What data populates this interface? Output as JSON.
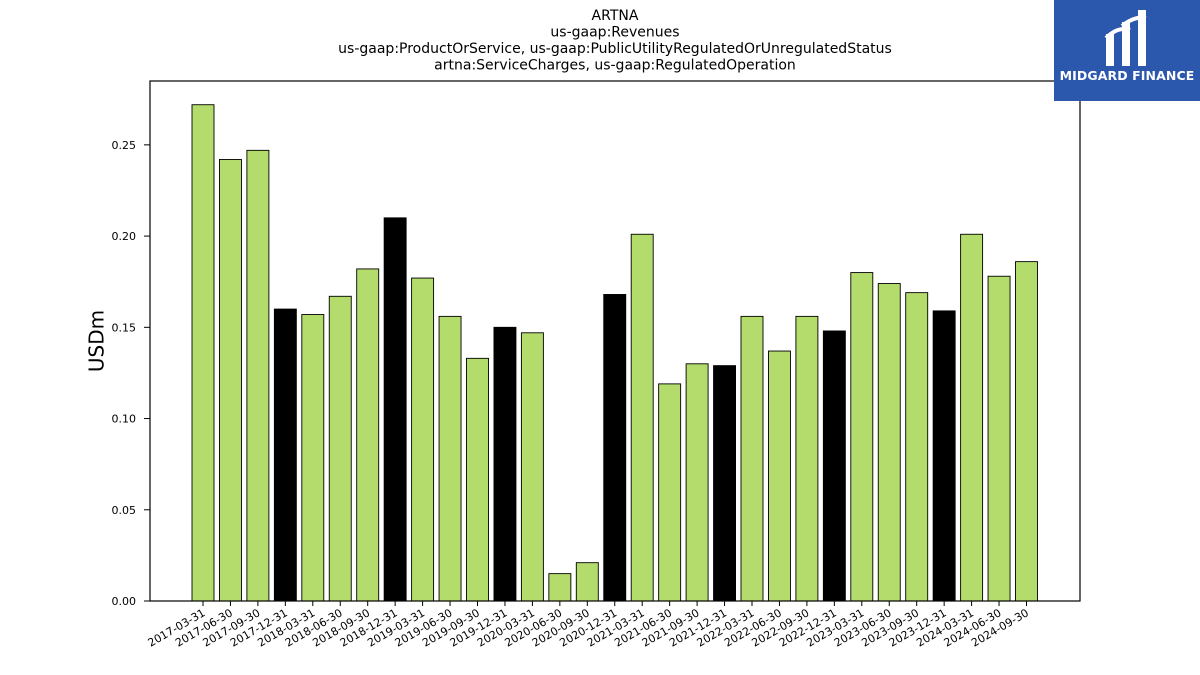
{
  "logo": {
    "text": "MIDGARD FINANCE"
  },
  "chart_data": {
    "type": "bar",
    "title_lines": [
      "ARTNA",
      "us-gaap:Revenues",
      "us-gaap:ProductOrService, us-gaap:PublicUtilityRegulatedOrUnregulatedStatus",
      "artna:ServiceCharges, us-gaap:RegulatedOperation"
    ],
    "xlabel": "",
    "ylabel": "USDm",
    "ylim": [
      0,
      0.285
    ],
    "yticks": [
      0.0,
      0.05,
      0.1,
      0.15,
      0.2,
      0.25
    ],
    "ytick_labels": [
      "0.00",
      "0.05",
      "0.10",
      "0.15",
      "0.20",
      "0.25"
    ],
    "grid": false,
    "colors": {
      "quarter": "#b3dc6c",
      "year_end": "#000000",
      "edge": "#000000"
    },
    "categories": [
      "2017-03-31",
      "2017-06-30",
      "2017-09-30",
      "2017-12-31",
      "2018-03-31",
      "2018-06-30",
      "2018-09-30",
      "2018-12-31",
      "2019-03-31",
      "2019-06-30",
      "2019-09-30",
      "2019-12-31",
      "2020-03-31",
      "2020-06-30",
      "2020-09-30",
      "2020-12-31",
      "2021-03-31",
      "2021-06-30",
      "2021-09-30",
      "2021-12-31",
      "2022-03-31",
      "2022-06-30",
      "2022-09-30",
      "2022-12-31",
      "2023-03-31",
      "2023-06-30",
      "2023-09-30",
      "2023-12-31",
      "2024-03-31",
      "2024-06-30",
      "2024-09-30"
    ],
    "values": [
      0.272,
      0.242,
      0.247,
      0.16,
      0.157,
      0.167,
      0.182,
      0.21,
      0.177,
      0.156,
      0.133,
      0.15,
      0.147,
      0.015,
      0.021,
      0.168,
      0.201,
      0.119,
      0.13,
      0.129,
      0.156,
      0.137,
      0.156,
      0.148,
      0.18,
      0.174,
      0.169,
      0.159,
      0.201,
      0.178,
      0.186
    ]
  }
}
